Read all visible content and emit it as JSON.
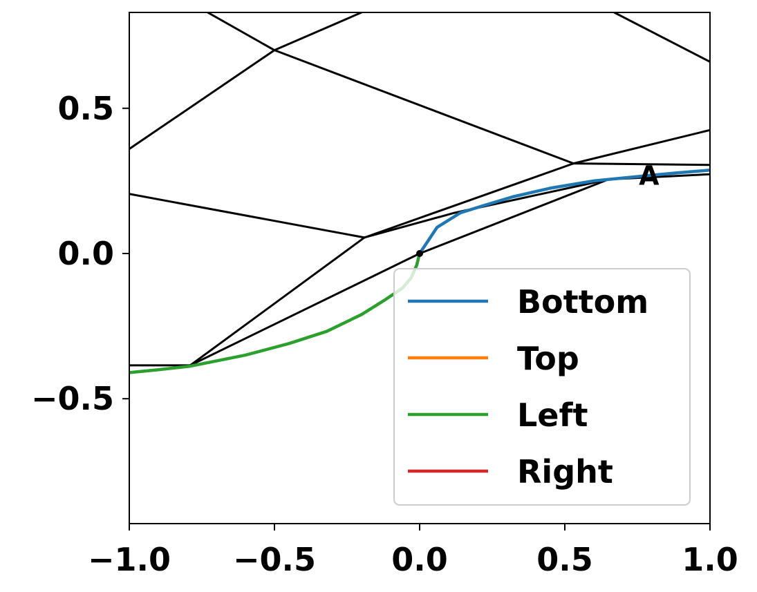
{
  "chart_data": {
    "type": "line",
    "title": "",
    "xlabel": "",
    "ylabel": "",
    "xlim": [
      -1.0,
      1.0
    ],
    "ylim": [
      -0.93,
      0.83
    ],
    "x_ticks": [
      -1.0,
      -0.5,
      0.0,
      0.5,
      1.0
    ],
    "x_tick_labels": [
      "−1.0",
      "−0.5",
      "0.0",
      "0.5",
      "1.0"
    ],
    "y_ticks": [
      -0.5,
      0.0,
      0.5
    ],
    "y_tick_labels": [
      "−0.5",
      "0.0",
      "0.5"
    ],
    "grid": false,
    "legend_position": "lower-right",
    "series": [
      {
        "name": "Bottom",
        "color": "#1f77b4",
        "points": [
          [
            0.0,
            0.0
          ],
          [
            0.06,
            0.09
          ],
          [
            0.14,
            0.14
          ],
          [
            0.22,
            0.165
          ],
          [
            0.32,
            0.195
          ],
          [
            0.45,
            0.225
          ],
          [
            0.6,
            0.25
          ],
          [
            0.75,
            0.265
          ],
          [
            0.88,
            0.277
          ],
          [
            1.0,
            0.287
          ]
        ]
      },
      {
        "name": "Top",
        "color": "#ff7f0e",
        "points": []
      },
      {
        "name": "Left",
        "color": "#2ca02c",
        "points": [
          [
            -1.0,
            -0.41
          ],
          [
            -0.9,
            -0.4
          ],
          [
            -0.79,
            -0.388
          ],
          [
            -0.6,
            -0.35
          ],
          [
            -0.45,
            -0.31
          ],
          [
            -0.32,
            -0.268
          ],
          [
            -0.2,
            -0.21
          ],
          [
            -0.12,
            -0.16
          ],
          [
            -0.06,
            -0.12
          ],
          [
            -0.03,
            -0.085
          ],
          [
            -0.01,
            -0.04
          ],
          [
            0.0,
            0.0
          ]
        ]
      },
      {
        "name": "Right",
        "color": "#d62728",
        "points": []
      }
    ],
    "black_segments": [
      [
        [
          -1.0,
          0.36
        ],
        [
          -0.5,
          0.7
        ]
      ],
      [
        [
          -0.5,
          0.7
        ],
        [
          -0.2,
          0.83
        ]
      ],
      [
        [
          -0.73,
          0.83
        ],
        [
          -0.5,
          0.7
        ]
      ],
      [
        [
          -0.5,
          0.7
        ],
        [
          0.53,
          0.31
        ]
      ],
      [
        [
          0.53,
          0.31
        ],
        [
          1.0,
          0.305
        ]
      ],
      [
        [
          0.67,
          0.83
        ],
        [
          1.0,
          0.66
        ]
      ],
      [
        [
          -1.0,
          0.205
        ],
        [
          -0.19,
          0.055
        ]
      ],
      [
        [
          -1.0,
          -0.385
        ],
        [
          -0.79,
          -0.385
        ]
      ],
      [
        [
          -0.79,
          -0.385
        ],
        [
          -0.19,
          0.055
        ]
      ],
      [
        [
          -0.19,
          0.055
        ],
        [
          0.53,
          0.31
        ]
      ],
      [
        [
          0.53,
          0.31
        ],
        [
          1.0,
          0.425
        ]
      ],
      [
        [
          -0.79,
          -0.385
        ],
        [
          0.0,
          0.0
        ]
      ],
      [
        [
          0.0,
          0.0
        ],
        [
          0.65,
          0.255
        ]
      ],
      [
        [
          0.65,
          0.255
        ],
        [
          1.0,
          0.273
        ]
      ],
      [
        [
          -0.19,
          0.055
        ],
        [
          0.12,
          0.14
        ]
      ],
      [
        [
          0.12,
          0.14
        ],
        [
          0.65,
          0.255
        ]
      ]
    ],
    "marker_point": [
      0.0,
      0.0
    ],
    "annotations": [
      {
        "text": "A",
        "x": 0.755,
        "y": 0.27
      }
    ]
  }
}
